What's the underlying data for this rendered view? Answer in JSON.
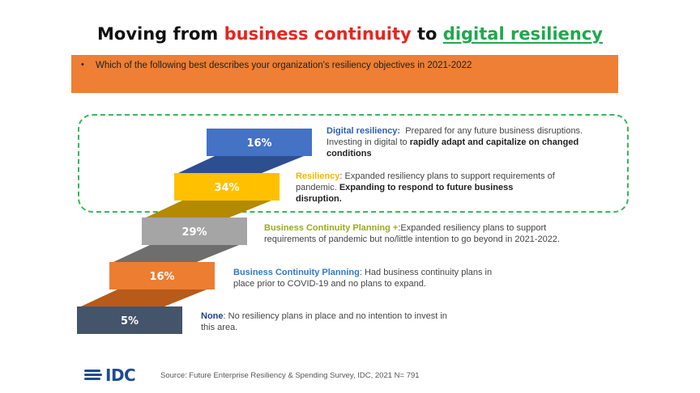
{
  "title": {
    "prefix": "Moving from ",
    "highlight1": "business continuity",
    "middle": " to ",
    "highlight2": "digital resiliency"
  },
  "question": {
    "bullet": "•",
    "text": "Which of the following best describes your organization's resiliency objectives in 2021-2022"
  },
  "chart_data": {
    "type": "bar",
    "categories": [
      "None",
      "Business Continuity Planning",
      "Business Continuity Planning +",
      "Resiliency",
      "Digital resiliency"
    ],
    "values": [
      5,
      16,
      29,
      34,
      16
    ],
    "value_labels": [
      "5%",
      "16%",
      "29%",
      "34%",
      "16%"
    ],
    "colors": [
      "#44546a",
      "#ed7d31",
      "#a5a5a5",
      "#ffc000",
      "#4472c4"
    ],
    "connector_colors": [
      "#2b3648",
      "#b85a1a",
      "#6e6e6e",
      "#b38a00",
      "#2c4f8f"
    ],
    "title": "",
    "xlabel": "",
    "ylabel": "",
    "descriptions": [
      {
        "lead": "None",
        "lead_suffix": ":",
        "lines": [
          "No resiliency plans in place and no intention to invest in",
          "this area."
        ]
      },
      {
        "lead": "Business Continuity Planning",
        "lead_suffix": ":",
        "lines": [
          "Had business continuity plans in",
          "place prior to COVID-19 and no plans to expand."
        ]
      },
      {
        "lead": "Business Continuity Planning +",
        "lead_suffix": ":",
        "lines": [
          "Expanded resiliency plans to support",
          "requirements of pandemic but no/little intention to go beyond in 2021-2022."
        ]
      },
      {
        "lead": "Resiliency",
        "lead_suffix": ":",
        "lines": [
          "Expanded resiliency plans to support requirements of",
          "pandemic. ",
          "disruption."
        ],
        "strong": "Expanding to respond to future business"
      },
      {
        "lead": "Digital resiliency:",
        "lead_suffix": "",
        "lines": [
          "Prepared for any future business disruptions.",
          "Investing  in digital to ",
          "conditions"
        ],
        "strong": "rapidly adapt and capitalize on changed"
      }
    ]
  },
  "footer": {
    "logo": "IDC",
    "source": "Source: Future Enterprise Resiliency & Spending Survey, IDC, 2021 N= 791"
  }
}
